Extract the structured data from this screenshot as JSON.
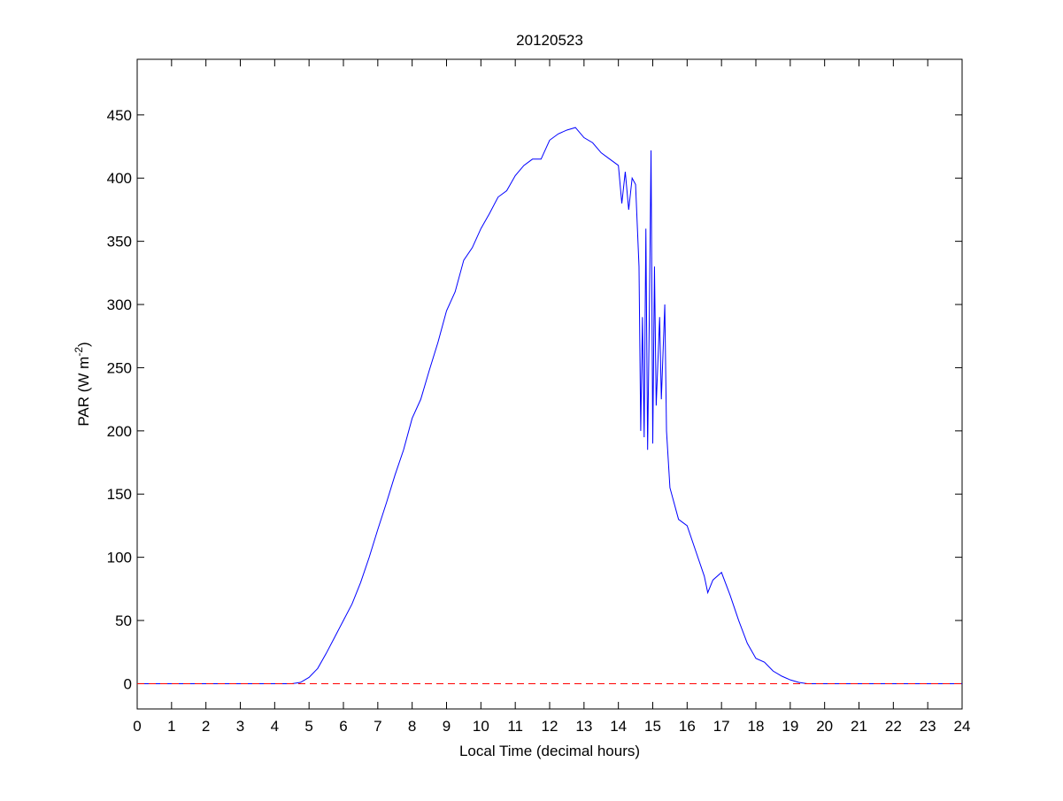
{
  "chart_data": {
    "type": "line",
    "title": "20120523",
    "x_label": "Local Time (decimal hours)",
    "y_label": {
      "text": "PAR (W m",
      "superscript": "-2",
      "suffix": ")"
    },
    "xlim": [
      0,
      24
    ],
    "xticks": [
      0,
      1,
      2,
      3,
      4,
      5,
      6,
      7,
      8,
      9,
      10,
      11,
      12,
      13,
      14,
      15,
      16,
      17,
      18,
      19,
      20,
      21,
      22,
      23,
      24
    ],
    "ylim": [
      -20,
      494
    ],
    "yticks": [
      0,
      50,
      100,
      150,
      200,
      250,
      300,
      350,
      400,
      450
    ],
    "grid": false,
    "reference_line": {
      "value": 0,
      "color": "#ff0000",
      "style": "dashed"
    },
    "series": [
      {
        "color": "#0000ff",
        "x": [
          0,
          1,
          2,
          3,
          4,
          4.5,
          4.75,
          5,
          5.25,
          5.5,
          5.75,
          6,
          6.25,
          6.5,
          6.75,
          7,
          7.25,
          7.5,
          7.75,
          8,
          8.25,
          8.5,
          8.75,
          9,
          9.25,
          9.5,
          9.75,
          10,
          10.25,
          10.5,
          10.75,
          11,
          11.25,
          11.5,
          11.75,
          12,
          12.25,
          12.5,
          12.75,
          13,
          13.25,
          13.5,
          13.75,
          14,
          14.1,
          14.2,
          14.3,
          14.4,
          14.5,
          14.6,
          14.65,
          14.7,
          14.75,
          14.8,
          14.85,
          14.9,
          14.95,
          15,
          15.05,
          15.1,
          15.2,
          15.25,
          15.35,
          15.4,
          15.5,
          15.6,
          15.75,
          16,
          16.25,
          16.5,
          16.6,
          16.75,
          17,
          17.25,
          17.5,
          17.75,
          18,
          18.25,
          18.5,
          18.75,
          19,
          19.25,
          19.5,
          20,
          21,
          22,
          23,
          24
        ],
        "values": [
          0,
          0,
          0,
          0,
          0,
          0,
          1,
          5,
          12,
          24,
          37,
          50,
          63,
          80,
          100,
          122,
          143,
          165,
          185,
          210,
          225,
          248,
          270,
          295,
          310,
          335,
          345,
          360,
          372,
          385,
          390,
          402,
          410,
          415,
          415,
          430,
          435,
          438,
          440,
          432,
          428,
          420,
          415,
          410,
          380,
          405,
          375,
          400,
          395,
          330,
          200,
          290,
          195,
          360,
          185,
          290,
          422,
          190,
          330,
          220,
          290,
          225,
          300,
          200,
          155,
          145,
          130,
          125,
          105,
          85,
          72,
          82,
          88,
          70,
          50,
          32,
          20,
          17,
          10,
          6,
          3,
          1,
          0,
          0,
          0,
          0,
          0,
          0
        ]
      }
    ]
  }
}
